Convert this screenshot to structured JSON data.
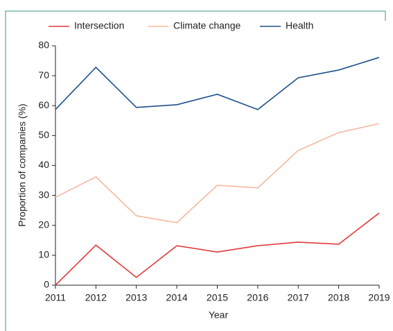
{
  "chart_data": {
    "type": "line",
    "x": [
      2011,
      2012,
      2013,
      2014,
      2015,
      2016,
      2017,
      2018,
      2019
    ],
    "series": [
      {
        "name": "Intersection",
        "color": "#e03a3a",
        "values": [
          0,
          13.4,
          2.6,
          13.2,
          11.1,
          13.2,
          14.4,
          13.7,
          24.1
        ]
      },
      {
        "name": "Climate change",
        "color": "#f6b8a0",
        "values": [
          29.4,
          36.2,
          23.2,
          20.9,
          33.4,
          32.5,
          45,
          51,
          54
        ]
      },
      {
        "name": "Health",
        "color": "#1b4f8a",
        "values": [
          58.7,
          72.8,
          59.4,
          60.3,
          63.8,
          58.7,
          69.3,
          71.9,
          76.1
        ]
      }
    ],
    "xlabel": "Year",
    "ylabel": "Proportion of companies (%)",
    "xlim": [
      2011,
      2019
    ],
    "xticks": [
      2011,
      2012,
      2013,
      2014,
      2015,
      2016,
      2017,
      2018,
      2019
    ],
    "ylim": [
      0,
      80
    ],
    "yticks": [
      0,
      10,
      20,
      30,
      40,
      50,
      60,
      70,
      80
    ],
    "legend": "top"
  }
}
